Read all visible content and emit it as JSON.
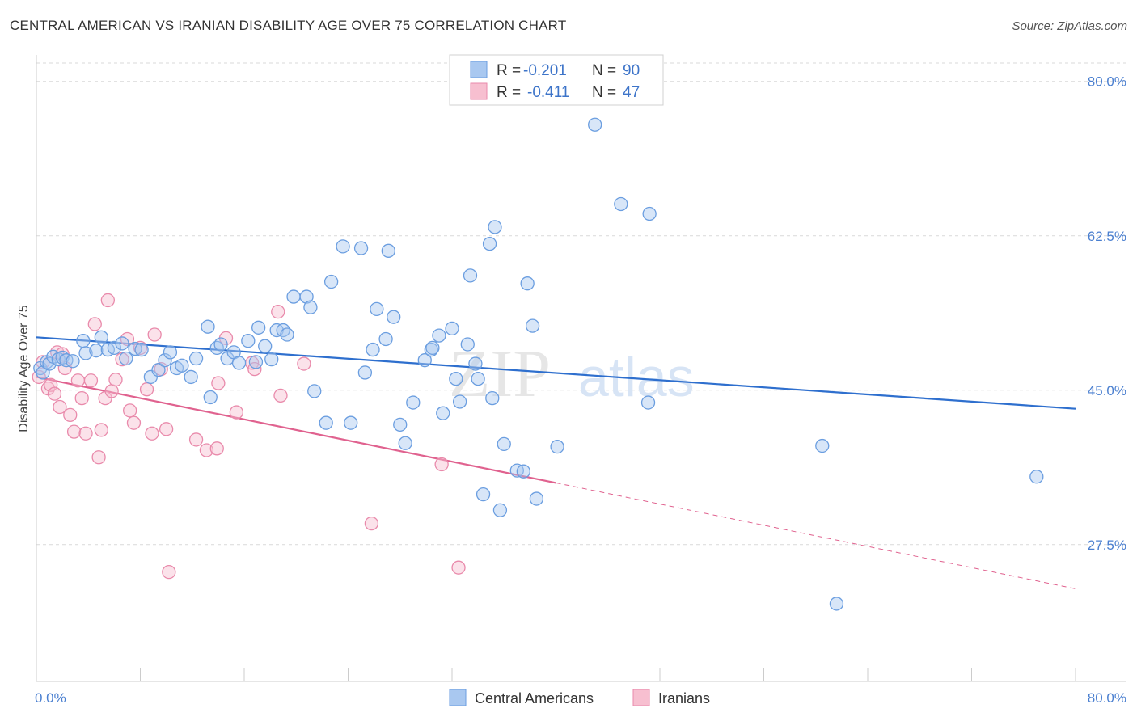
{
  "header": {
    "title": "CENTRAL AMERICAN VS IRANIAN DISABILITY AGE OVER 75 CORRELATION CHART",
    "source": "Source: ZipAtlas.com"
  },
  "legend": {
    "rows": [
      {
        "r_label": "R =",
        "r_value": "-0.201",
        "n_label": "N =",
        "n_value": "90"
      },
      {
        "r_label": "R =",
        "r_value": "-0.411",
        "n_label": "N =",
        "n_value": "47"
      }
    ],
    "bottom": [
      "Central Americans",
      "Iranians"
    ]
  },
  "watermark": {
    "zip": "ZIP",
    "atlas": "atlas"
  },
  "colors": {
    "blue_fill": "#a9c8f0",
    "blue_stroke": "#6b9ee0",
    "blue_line": "#2e6fce",
    "pink_fill": "#f7bfd0",
    "pink_stroke": "#e98aab",
    "pink_line": "#e0628f",
    "grid": "#d9d9d9",
    "tick_text": "#4a7fd0"
  },
  "chart_data": {
    "type": "scatter",
    "title": "CENTRAL AMERICAN VS IRANIAN DISABILITY AGE OVER 75 CORRELATION CHART",
    "xlabel": "",
    "ylabel": "Disability Age Over 75",
    "xlim": [
      0,
      80
    ],
    "ylim": [
      12,
      83
    ],
    "x_tick_labels": [
      "0.0%",
      "80.0%"
    ],
    "y_ticks": [
      27.5,
      45.0,
      62.5,
      80.0
    ],
    "y_tick_labels": [
      "27.5%",
      "45.0%",
      "62.5%",
      "80.0%"
    ],
    "grid": "horizontal dashed",
    "legend_position": "top-center",
    "series": [
      {
        "name": "Central Americans",
        "R": -0.201,
        "N": 90,
        "trend": {
          "x": [
            0,
            80
          ],
          "y": [
            51.0,
            42.9
          ]
        },
        "points": [
          [
            0.3,
            47.5
          ],
          [
            0.5,
            47.0
          ],
          [
            0.8,
            48.2
          ],
          [
            1.0,
            48.0
          ],
          [
            1.3,
            48.8
          ],
          [
            1.7,
            48.5
          ],
          [
            2.0,
            48.7
          ],
          [
            2.3,
            48.4
          ],
          [
            2.8,
            48.3
          ],
          [
            3.6,
            50.6
          ],
          [
            3.8,
            49.2
          ],
          [
            4.6,
            49.5
          ],
          [
            5.0,
            51.0
          ],
          [
            5.5,
            49.6
          ],
          [
            6.0,
            49.8
          ],
          [
            6.6,
            50.3
          ],
          [
            6.9,
            48.6
          ],
          [
            7.6,
            49.7
          ],
          [
            8.1,
            49.6
          ],
          [
            8.8,
            46.5
          ],
          [
            9.4,
            47.3
          ],
          [
            9.9,
            48.4
          ],
          [
            10.3,
            49.3
          ],
          [
            10.8,
            47.5
          ],
          [
            11.2,
            47.8
          ],
          [
            11.9,
            46.5
          ],
          [
            12.3,
            48.6
          ],
          [
            13.2,
            52.2
          ],
          [
            13.4,
            44.2
          ],
          [
            13.9,
            49.8
          ],
          [
            14.2,
            50.2
          ],
          [
            14.7,
            48.6
          ],
          [
            15.2,
            49.3
          ],
          [
            15.6,
            48.1
          ],
          [
            16.3,
            50.6
          ],
          [
            16.9,
            48.2
          ],
          [
            17.1,
            52.1
          ],
          [
            17.6,
            50.0
          ],
          [
            18.1,
            48.5
          ],
          [
            18.5,
            51.8
          ],
          [
            19.0,
            51.8
          ],
          [
            19.3,
            51.3
          ],
          [
            19.8,
            55.6
          ],
          [
            20.8,
            55.6
          ],
          [
            21.1,
            54.4
          ],
          [
            21.4,
            44.9
          ],
          [
            22.3,
            41.3
          ],
          [
            22.7,
            57.3
          ],
          [
            23.6,
            61.3
          ],
          [
            24.2,
            41.3
          ],
          [
            25.0,
            61.1
          ],
          [
            25.3,
            47.0
          ],
          [
            25.9,
            49.6
          ],
          [
            26.2,
            54.2
          ],
          [
            26.9,
            50.8
          ],
          [
            27.1,
            60.8
          ],
          [
            27.5,
            53.3
          ],
          [
            28.0,
            41.1
          ],
          [
            28.4,
            39.0
          ],
          [
            29.0,
            43.6
          ],
          [
            29.9,
            48.4
          ],
          [
            30.4,
            49.6
          ],
          [
            30.5,
            49.8
          ],
          [
            31.0,
            51.2
          ],
          [
            31.3,
            42.4
          ],
          [
            32.0,
            52.0
          ],
          [
            32.3,
            46.3
          ],
          [
            32.6,
            43.7
          ],
          [
            33.2,
            50.2
          ],
          [
            33.4,
            58.0
          ],
          [
            33.8,
            48.0
          ],
          [
            34.0,
            46.3
          ],
          [
            34.4,
            33.2
          ],
          [
            34.9,
            61.6
          ],
          [
            35.1,
            44.1
          ],
          [
            35.3,
            63.5
          ],
          [
            35.7,
            31.4
          ],
          [
            36.0,
            38.9
          ],
          [
            37.0,
            35.9
          ],
          [
            37.5,
            35.8
          ],
          [
            37.8,
            57.1
          ],
          [
            38.2,
            52.3
          ],
          [
            38.5,
            32.7
          ],
          [
            40.1,
            38.6
          ],
          [
            43.0,
            75.1
          ],
          [
            45.0,
            66.1
          ],
          [
            47.1,
            43.6
          ],
          [
            47.2,
            65.0
          ],
          [
            60.5,
            38.7
          ],
          [
            61.6,
            20.8
          ],
          [
            77.0,
            35.2
          ]
        ]
      },
      {
        "name": "Iranians",
        "R": -0.411,
        "N": 47,
        "trend": {
          "x": [
            0,
            40
          ],
          "y": [
            46.5,
            34.5
          ]
        },
        "trend_dashed": {
          "x": [
            40,
            80
          ],
          "y": [
            34.5,
            22.5
          ]
        },
        "points": [
          [
            0.2,
            46.5
          ],
          [
            0.5,
            48.2
          ],
          [
            0.9,
            45.2
          ],
          [
            1.1,
            45.6
          ],
          [
            1.4,
            44.6
          ],
          [
            1.6,
            49.3
          ],
          [
            1.8,
            43.1
          ],
          [
            2.0,
            49.1
          ],
          [
            2.2,
            47.5
          ],
          [
            2.6,
            42.2
          ],
          [
            2.9,
            40.3
          ],
          [
            3.2,
            46.1
          ],
          [
            3.5,
            44.1
          ],
          [
            3.8,
            40.1
          ],
          [
            4.2,
            46.1
          ],
          [
            4.5,
            52.5
          ],
          [
            4.8,
            37.4
          ],
          [
            5.0,
            40.5
          ],
          [
            5.3,
            44.1
          ],
          [
            5.8,
            44.9
          ],
          [
            6.1,
            46.2
          ],
          [
            6.6,
            48.5
          ],
          [
            7.0,
            50.8
          ],
          [
            7.2,
            42.7
          ],
          [
            7.5,
            41.3
          ],
          [
            8.0,
            49.8
          ],
          [
            8.5,
            45.1
          ],
          [
            8.9,
            40.1
          ],
          [
            9.1,
            51.3
          ],
          [
            9.6,
            47.4
          ],
          [
            10.0,
            40.6
          ],
          [
            10.2,
            24.4
          ],
          [
            12.3,
            39.4
          ],
          [
            13.1,
            38.2
          ],
          [
            13.9,
            38.4
          ],
          [
            14.0,
            45.8
          ],
          [
            14.6,
            50.9
          ],
          [
            15.4,
            42.5
          ],
          [
            16.6,
            48.1
          ],
          [
            16.8,
            47.4
          ],
          [
            18.6,
            53.9
          ],
          [
            18.8,
            44.4
          ],
          [
            20.6,
            48.0
          ],
          [
            25.8,
            29.9
          ],
          [
            31.2,
            36.6
          ],
          [
            32.5,
            24.9
          ],
          [
            5.5,
            55.2
          ]
        ]
      }
    ]
  }
}
